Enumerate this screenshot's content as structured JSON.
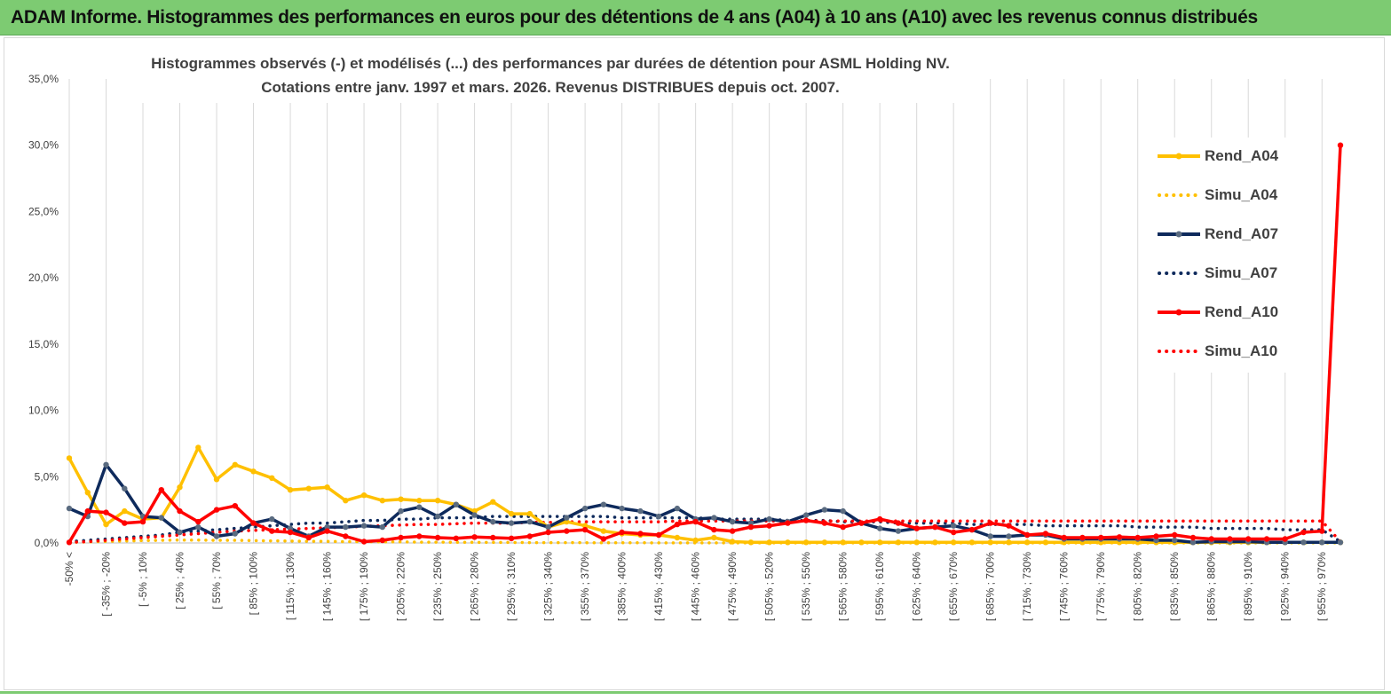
{
  "banner": {
    "title": "ADAM Informe. Histogrammes des performances en euros pour des détentions de 4 ans (A04) à 10 ans (A10) avec les revenus connus distribués",
    "color": "#7dcb72"
  },
  "chart_data": {
    "type": "line",
    "title_line1": "Histogrammes observés (-) et modélisés (...)  des performances par durées de détention pour ASML Holding NV.",
    "title_line2": "Cotations entre janv. 1997 et mars. 2026. Revenus DISTRIBUES depuis oct. 2007.",
    "ylim": [
      0,
      35
    ],
    "yticks": [
      "0,0%",
      "5,0%",
      "10,0%",
      "15,0%",
      "20,0%",
      "25,0%",
      "30,0%",
      "35,0%"
    ],
    "xtick_labels": [
      "-50% <",
      "[ -35% ; -20%",
      "[ -5% ; 10%",
      "[ 25% ; 40%",
      "[ 55% ; 70%",
      "[ 85% ; 100%",
      "[ 115% ; 130%",
      "[ 145% ; 160%",
      "[ 175% ; 190%",
      "[ 205% ; 220%",
      "[ 235% ; 250%",
      "[ 265% ; 280%",
      "[ 295% ; 310%",
      "[ 325% ; 340%",
      "[ 355% ; 370%",
      "[ 385% ; 400%",
      "[ 415% ; 430%",
      "[ 445% ; 460%",
      "[ 475% ; 490%",
      "[ 505% ; 520%",
      "[ 535% ; 550%",
      "[ 565% ; 580%",
      "[ 595% ; 610%",
      "[ 625% ; 640%",
      "[ 655% ; 670%",
      "[ 685% ; 700%",
      "[ 715% ; 730%",
      "[ 745% ; 760%",
      "[ 775% ; 790%",
      "[ 805% ; 820%",
      "[ 835% ; 850%",
      "[ 865% ; 880%",
      "[ 895% ; 910%",
      "[ 925% ; 940%",
      "[ 955% ; 970%"
    ],
    "series": [
      {
        "name": "Rend_A04",
        "style": "solid",
        "color": "#ffc000",
        "values": [
          6.4,
          3.8,
          1.4,
          2.4,
          1.8,
          1.9,
          4.2,
          7.2,
          4.8,
          5.9,
          5.4,
          4.9,
          4.0,
          4.1,
          4.2,
          3.2,
          3.6,
          3.2,
          3.3,
          3.2,
          3.2,
          2.9,
          2.4,
          3.1,
          2.2,
          2.2,
          1.2,
          1.6,
          1.3,
          0.9,
          0.7,
          0.6,
          0.6,
          0.4,
          0.2,
          0.4,
          0.1,
          0.05,
          0.05,
          0.05,
          0.05,
          0.05,
          0.05,
          0.05,
          0.05,
          0.05,
          0.05,
          0.05,
          0.05,
          0.05,
          0.05,
          0.05,
          0.05,
          0.05,
          0.05,
          0.05,
          0.05,
          0.05,
          0.05,
          0.05,
          0.05,
          0.05,
          0.05,
          0.05,
          0.05,
          0.05,
          0.05,
          0.05,
          0.05,
          0.05
        ]
      },
      {
        "name": "Simu_A04",
        "style": "dotted",
        "color": "#ffc000",
        "values": [
          0.05,
          0.08,
          0.12,
          0.15,
          0.18,
          0.2,
          0.22,
          0.22,
          0.2,
          0.2,
          0.18,
          0.16,
          0.15,
          0.13,
          0.12,
          0.1,
          0.1,
          0.08,
          0.08,
          0.06,
          0.06,
          0.05,
          0.05,
          0.04,
          0.04,
          0.03,
          0.03,
          0.03,
          0.02,
          0.02,
          0.02,
          0.02,
          0.01,
          0.01,
          0.01,
          0.01,
          0.01,
          0.01,
          0.01,
          0.01,
          0.01,
          0.01,
          0.01,
          0.01,
          0.01,
          0.01,
          0.01,
          0.01,
          0.01,
          0.01,
          0.01,
          0.01,
          0.01,
          0.01,
          0.01,
          0.01,
          0.01,
          0.01,
          0.01,
          0.01,
          0.01,
          0.01,
          0.01,
          0.01,
          0.01,
          0.01,
          0.01,
          0.01,
          0.01,
          0.01
        ]
      },
      {
        "name": "Rend_A07",
        "style": "solid",
        "color": "#0e2a5c",
        "values": [
          2.6,
          2.0,
          5.9,
          4.1,
          2.0,
          1.9,
          0.8,
          1.2,
          0.5,
          0.7,
          1.5,
          1.8,
          1.1,
          0.5,
          1.2,
          1.2,
          1.3,
          1.2,
          2.4,
          2.7,
          2.0,
          2.9,
          2.1,
          1.6,
          1.5,
          1.6,
          1.2,
          1.9,
          2.6,
          2.9,
          2.6,
          2.4,
          2.0,
          2.6,
          1.8,
          1.9,
          1.6,
          1.5,
          1.8,
          1.6,
          2.1,
          2.5,
          2.4,
          1.5,
          1.1,
          0.9,
          1.1,
          1.2,
          1.3,
          1.0,
          0.5,
          0.5,
          0.6,
          0.6,
          0.3,
          0.3,
          0.3,
          0.3,
          0.3,
          0.2,
          0.2,
          0.05,
          0.1,
          0.1,
          0.1,
          0.05,
          0.05,
          0.05,
          0.05,
          0.05
        ]
      },
      {
        "name": "Simu_A07",
        "style": "dotted",
        "color": "#0e2a5c",
        "values": [
          0.1,
          0.2,
          0.3,
          0.4,
          0.5,
          0.6,
          0.8,
          0.9,
          1.0,
          1.1,
          1.2,
          1.3,
          1.4,
          1.5,
          1.5,
          1.6,
          1.7,
          1.7,
          1.8,
          1.8,
          1.9,
          1.9,
          1.9,
          2.0,
          2.0,
          2.0,
          2.0,
          2.0,
          2.0,
          2.0,
          1.9,
          1.9,
          1.9,
          1.9,
          1.9,
          1.8,
          1.8,
          1.8,
          1.8,
          1.7,
          1.7,
          1.7,
          1.6,
          1.6,
          1.6,
          1.5,
          1.5,
          1.5,
          1.5,
          1.4,
          1.4,
          1.4,
          1.4,
          1.3,
          1.3,
          1.3,
          1.3,
          1.3,
          1.2,
          1.2,
          1.2,
          1.2,
          1.1,
          1.1,
          1.1,
          1.1,
          1.0,
          1.0,
          1.0,
          0.1
        ]
      },
      {
        "name": "Rend_A10",
        "style": "solid",
        "color": "#ff0000",
        "values": [
          0.05,
          2.4,
          2.3,
          1.5,
          1.6,
          4.0,
          2.4,
          1.6,
          2.5,
          2.8,
          1.5,
          0.9,
          0.8,
          0.4,
          0.9,
          0.5,
          0.1,
          0.2,
          0.4,
          0.5,
          0.4,
          0.35,
          0.45,
          0.4,
          0.35,
          0.5,
          0.8,
          0.9,
          1.0,
          0.3,
          0.8,
          0.7,
          0.6,
          1.4,
          1.6,
          1.0,
          0.9,
          1.2,
          1.3,
          1.5,
          1.7,
          1.5,
          1.2,
          1.5,
          1.8,
          1.5,
          1.1,
          1.2,
          0.8,
          1.0,
          1.5,
          1.3,
          0.6,
          0.7,
          0.4,
          0.4,
          0.4,
          0.45,
          0.4,
          0.5,
          0.6,
          0.4,
          0.3,
          0.3,
          0.3,
          0.3,
          0.3,
          0.8,
          0.9,
          30.0
        ]
      },
      {
        "name": "Simu_A10",
        "style": "dotted",
        "color": "#ff0000",
        "values": [
          0.05,
          0.1,
          0.2,
          0.3,
          0.4,
          0.5,
          0.6,
          0.7,
          0.8,
          0.9,
          0.95,
          1.0,
          1.05,
          1.1,
          1.15,
          1.2,
          1.25,
          1.3,
          1.35,
          1.4,
          1.4,
          1.45,
          1.5,
          1.5,
          1.5,
          1.55,
          1.55,
          1.6,
          1.6,
          1.6,
          1.6,
          1.6,
          1.6,
          1.65,
          1.65,
          1.65,
          1.65,
          1.65,
          1.65,
          1.65,
          1.65,
          1.65,
          1.65,
          1.65,
          1.65,
          1.65,
          1.65,
          1.65,
          1.65,
          1.65,
          1.65,
          1.65,
          1.65,
          1.65,
          1.65,
          1.65,
          1.65,
          1.65,
          1.65,
          1.65,
          1.65,
          1.65,
          1.65,
          1.65,
          1.65,
          1.65,
          1.65,
          1.65,
          1.65,
          0.1
        ]
      }
    ],
    "legend_position": "right"
  }
}
